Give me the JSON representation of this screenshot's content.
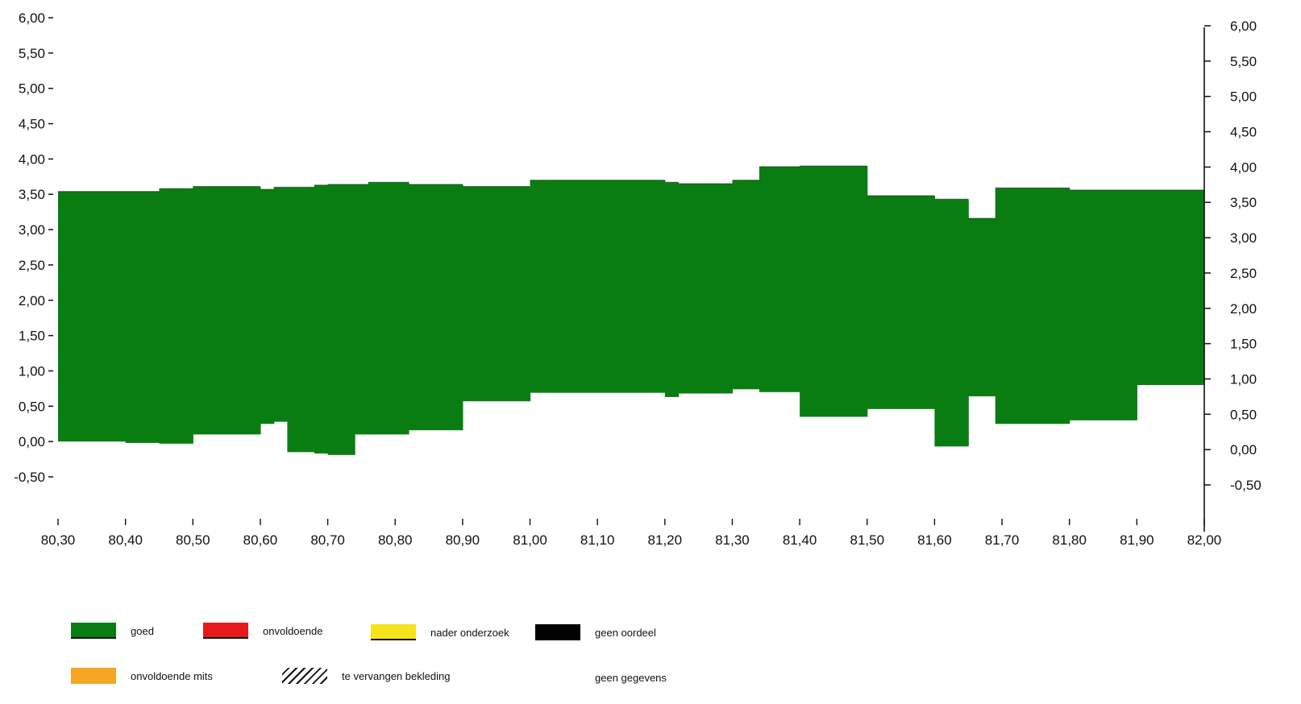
{
  "chart_data": {
    "type": "area",
    "title": "",
    "xlabel": "",
    "ylabel": "",
    "xlim": [
      80.3,
      82.0
    ],
    "ylim": [
      -0.5,
      6.0
    ],
    "x_ticks": [
      "80,30",
      "80,40",
      "80,50",
      "80,60",
      "80,70",
      "80,80",
      "80,90",
      "81,00",
      "81,10",
      "81,20",
      "81,30",
      "81,40",
      "81,50",
      "81,60",
      "81,70",
      "81,80",
      "81,90",
      "82,00"
    ],
    "y_ticks_left": [
      "6,00",
      "5,50",
      "5,00",
      "4,50",
      "4,00",
      "3,50",
      "3,00",
      "2,50",
      "2,00",
      "1,50",
      "1,00",
      "0,50",
      "0,00",
      "-0,50"
    ],
    "y_ticks_right": [
      "6,00",
      "5,50",
      "5,00",
      "4,50",
      "4,00",
      "3,50",
      "3,00",
      "2,50",
      "2,00",
      "1,50",
      "1,00",
      "0,50",
      "0,00",
      "-0,50"
    ],
    "fill_color": "#0a7d12",
    "series": [
      {
        "segments": [
          {
            "x0": 80.3,
            "x1": 80.4,
            "top": 3.54,
            "bottom": 0.0
          },
          {
            "x0": 80.4,
            "x1": 80.45,
            "top": 3.54,
            "bottom": -0.02
          },
          {
            "x0": 80.45,
            "x1": 80.5,
            "top": 3.58,
            "bottom": -0.03
          },
          {
            "x0": 80.5,
            "x1": 80.6,
            "top": 3.61,
            "bottom": 0.1
          },
          {
            "x0": 80.6,
            "x1": 80.62,
            "top": 3.57,
            "bottom": 0.25
          },
          {
            "x0": 80.62,
            "x1": 80.64,
            "top": 3.6,
            "bottom": 0.28
          },
          {
            "x0": 80.64,
            "x1": 80.68,
            "top": 3.6,
            "bottom": -0.15
          },
          {
            "x0": 80.68,
            "x1": 80.7,
            "top": 3.63,
            "bottom": -0.17
          },
          {
            "x0": 80.7,
            "x1": 80.74,
            "top": 3.64,
            "bottom": -0.19
          },
          {
            "x0": 80.74,
            "x1": 80.76,
            "top": 3.64,
            "bottom": 0.1
          },
          {
            "x0": 80.76,
            "x1": 80.82,
            "top": 3.67,
            "bottom": 0.1
          },
          {
            "x0": 80.82,
            "x1": 80.9,
            "top": 3.64,
            "bottom": 0.16
          },
          {
            "x0": 80.9,
            "x1": 81.0,
            "top": 3.61,
            "bottom": 0.57
          },
          {
            "x0": 81.0,
            "x1": 81.2,
            "top": 3.7,
            "bottom": 0.69
          },
          {
            "x0": 81.2,
            "x1": 81.22,
            "top": 3.67,
            "bottom": 0.63
          },
          {
            "x0": 81.22,
            "x1": 81.3,
            "top": 3.65,
            "bottom": 0.68
          },
          {
            "x0": 81.3,
            "x1": 81.34,
            "top": 3.7,
            "bottom": 0.74
          },
          {
            "x0": 81.34,
            "x1": 81.4,
            "top": 3.89,
            "bottom": 0.7
          },
          {
            "x0": 81.4,
            "x1": 81.5,
            "top": 3.9,
            "bottom": 0.35
          },
          {
            "x0": 81.5,
            "x1": 81.6,
            "top": 3.48,
            "bottom": 0.46
          },
          {
            "x0": 81.6,
            "x1": 81.65,
            "top": 3.43,
            "bottom": -0.07
          },
          {
            "x0": 81.65,
            "x1": 81.69,
            "top": 3.16,
            "bottom": 0.64
          },
          {
            "x0": 81.69,
            "x1": 81.8,
            "top": 3.59,
            "bottom": 0.25
          },
          {
            "x0": 81.8,
            "x1": 81.9,
            "top": 3.56,
            "bottom": 0.3
          },
          {
            "x0": 81.9,
            "x1": 82.0,
            "top": 3.56,
            "bottom": 0.8
          }
        ]
      }
    ],
    "legend": [
      {
        "label": "goed",
        "color": "#0a7d12",
        "style": "solid"
      },
      {
        "label": "onvoldoende",
        "color": "#e8191a",
        "style": "solid"
      },
      {
        "label": "nader onderzoek",
        "color": "#f5e31c",
        "style": "solid"
      },
      {
        "label": "geen oordeel",
        "color": "#000000",
        "style": "solid"
      },
      {
        "label": "onvoldoende mits",
        "color": "#f5a623",
        "style": "solid"
      },
      {
        "label": "te vervangen bekleding",
        "color": "#111111",
        "style": "hatch"
      },
      {
        "label": "geen gegevens",
        "color": "",
        "style": "none"
      }
    ],
    "grid": false,
    "legend_position": "bottom"
  }
}
